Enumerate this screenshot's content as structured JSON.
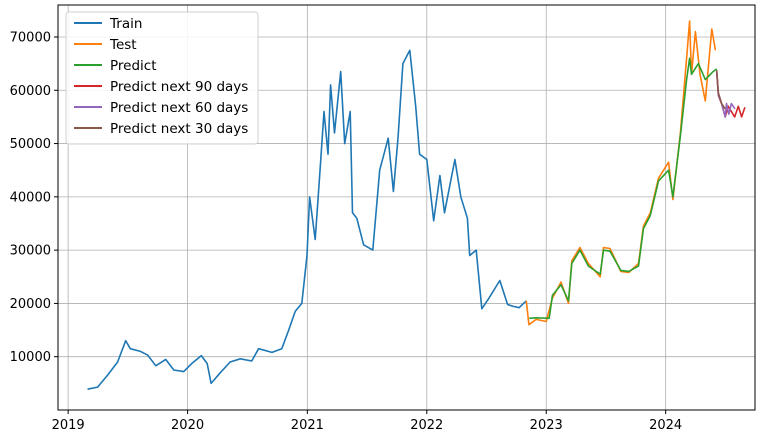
{
  "chart_data": {
    "type": "line",
    "title": "",
    "xlabel": "",
    "ylabel": "",
    "grid": true,
    "legend_position": "top-left",
    "xlim": [
      "2018-12-01",
      "2024-09-30"
    ],
    "ylim": [
      0,
      76000
    ],
    "x_ticks": [
      "2019",
      "2020",
      "2021",
      "2022",
      "2023",
      "2024"
    ],
    "y_ticks": [
      10000,
      20000,
      30000,
      40000,
      50000,
      60000,
      70000
    ],
    "series": [
      {
        "name": "Train",
        "color": "#1f77b4",
        "points": [
          [
            "2019-03-01",
            3900
          ],
          [
            "2019-04-01",
            4300
          ],
          [
            "2019-05-01",
            6500
          ],
          [
            "2019-06-01",
            9000
          ],
          [
            "2019-06-26",
            13000
          ],
          [
            "2019-07-10",
            11500
          ],
          [
            "2019-08-10",
            11000
          ],
          [
            "2019-09-01",
            10300
          ],
          [
            "2019-09-26",
            8300
          ],
          [
            "2019-10-26",
            9500
          ],
          [
            "2019-11-20",
            7500
          ],
          [
            "2019-12-20",
            7200
          ],
          [
            "2020-01-15",
            8800
          ],
          [
            "2020-02-12",
            10200
          ],
          [
            "2020-03-01",
            8700
          ],
          [
            "2020-03-13",
            5000
          ],
          [
            "2020-04-10",
            7000
          ],
          [
            "2020-05-10",
            9000
          ],
          [
            "2020-06-10",
            9600
          ],
          [
            "2020-07-15",
            9200
          ],
          [
            "2020-08-05",
            11500
          ],
          [
            "2020-09-15",
            10800
          ],
          [
            "2020-10-15",
            11500
          ],
          [
            "2020-11-05",
            15000
          ],
          [
            "2020-11-25",
            18500
          ],
          [
            "2020-12-15",
            20000
          ],
          [
            "2020-12-31",
            29000
          ],
          [
            "2021-01-08",
            40000
          ],
          [
            "2021-01-25",
            32000
          ],
          [
            "2021-02-10",
            46000
          ],
          [
            "2021-02-21",
            56000
          ],
          [
            "2021-03-05",
            48000
          ],
          [
            "2021-03-13",
            61000
          ],
          [
            "2021-03-25",
            52000
          ],
          [
            "2021-04-13",
            63500
          ],
          [
            "2021-04-25",
            50000
          ],
          [
            "2021-05-12",
            56000
          ],
          [
            "2021-05-19",
            37000
          ],
          [
            "2021-06-01",
            36000
          ],
          [
            "2021-06-22",
            31000
          ],
          [
            "2021-07-20",
            30000
          ],
          [
            "2021-08-10",
            45000
          ],
          [
            "2021-09-05",
            51000
          ],
          [
            "2021-09-21",
            41000
          ],
          [
            "2021-10-05",
            51000
          ],
          [
            "2021-10-20",
            65000
          ],
          [
            "2021-11-10",
            67500
          ],
          [
            "2021-11-28",
            57000
          ],
          [
            "2021-12-10",
            48000
          ],
          [
            "2022-01-01",
            47000
          ],
          [
            "2022-01-22",
            35500
          ],
          [
            "2022-02-10",
            44000
          ],
          [
            "2022-02-24",
            37000
          ],
          [
            "2022-03-28",
            47000
          ],
          [
            "2022-04-15",
            40000
          ],
          [
            "2022-05-05",
            36000
          ],
          [
            "2022-05-12",
            29000
          ],
          [
            "2022-06-01",
            30000
          ],
          [
            "2022-06-15",
            21000
          ],
          [
            "2022-06-18",
            19000
          ],
          [
            "2022-07-10",
            21000
          ],
          [
            "2022-08-12",
            24300
          ],
          [
            "2022-09-05",
            19800
          ],
          [
            "2022-09-20",
            19500
          ],
          [
            "2022-10-10",
            19200
          ],
          [
            "2022-11-01",
            20500
          ]
        ]
      },
      {
        "name": "Test",
        "color": "#ff7f0e",
        "points": [
          [
            "2022-11-01",
            20500
          ],
          [
            "2022-11-09",
            16000
          ],
          [
            "2022-12-01",
            17000
          ],
          [
            "2023-01-01",
            16600
          ],
          [
            "2023-01-20",
            21000
          ],
          [
            "2023-02-15",
            24000
          ],
          [
            "2023-03-10",
            20000
          ],
          [
            "2023-03-20",
            28000
          ],
          [
            "2023-04-14",
            30500
          ],
          [
            "2023-05-10",
            27500
          ],
          [
            "2023-06-15",
            25000
          ],
          [
            "2023-06-25",
            30500
          ],
          [
            "2023-07-15",
            30300
          ],
          [
            "2023-08-17",
            26000
          ],
          [
            "2023-09-10",
            25800
          ],
          [
            "2023-10-10",
            27500
          ],
          [
            "2023-10-25",
            34500
          ],
          [
            "2023-11-15",
            37000
          ],
          [
            "2023-12-10",
            43500
          ],
          [
            "2024-01-10",
            46500
          ],
          [
            "2024-01-23",
            39500
          ],
          [
            "2024-02-15",
            52000
          ],
          [
            "2024-03-05",
            66000
          ],
          [
            "2024-03-14",
            73000
          ],
          [
            "2024-03-20",
            63000
          ],
          [
            "2024-04-01",
            71000
          ],
          [
            "2024-04-15",
            63000
          ],
          [
            "2024-05-01",
            58000
          ],
          [
            "2024-05-21",
            71500
          ],
          [
            "2024-06-01",
            67500
          ]
        ]
      },
      {
        "name": "Predict",
        "color": "#2ca02c",
        "points": [
          [
            "2022-11-10",
            17200
          ],
          [
            "2022-12-01",
            17300
          ],
          [
            "2023-01-10",
            17200
          ],
          [
            "2023-01-20",
            21500
          ],
          [
            "2023-02-15",
            23500
          ],
          [
            "2023-03-10",
            20500
          ],
          [
            "2023-03-20",
            27500
          ],
          [
            "2023-04-14",
            30000
          ],
          [
            "2023-05-10",
            27000
          ],
          [
            "2023-06-15",
            25500
          ],
          [
            "2023-06-25",
            30000
          ],
          [
            "2023-07-15",
            29800
          ],
          [
            "2023-08-17",
            26200
          ],
          [
            "2023-09-10",
            26000
          ],
          [
            "2023-10-10",
            27000
          ],
          [
            "2023-10-25",
            34000
          ],
          [
            "2023-11-15",
            36500
          ],
          [
            "2023-12-10",
            43000
          ],
          [
            "2024-01-10",
            45000
          ],
          [
            "2024-01-23",
            40000
          ],
          [
            "2024-02-15",
            51500
          ],
          [
            "2024-03-05",
            62000
          ],
          [
            "2024-03-14",
            66000
          ],
          [
            "2024-03-20",
            63000
          ],
          [
            "2024-04-10",
            65000
          ],
          [
            "2024-05-01",
            62000
          ],
          [
            "2024-05-25",
            63500
          ],
          [
            "2024-06-05",
            64000
          ]
        ]
      },
      {
        "name": "Predict next 90 days",
        "color": "#d62728",
        "points": [
          [
            "2024-06-05",
            63500
          ],
          [
            "2024-06-10",
            59000
          ],
          [
            "2024-06-20",
            57500
          ],
          [
            "2024-07-01",
            55000
          ],
          [
            "2024-07-10",
            57000
          ],
          [
            "2024-07-20",
            56000
          ],
          [
            "2024-07-30",
            55000
          ],
          [
            "2024-08-10",
            57000
          ],
          [
            "2024-08-20",
            55000
          ],
          [
            "2024-08-30",
            56800
          ]
        ]
      },
      {
        "name": "Predict next 60 days",
        "color": "#9467bd",
        "points": [
          [
            "2024-06-05",
            63500
          ],
          [
            "2024-06-10",
            59000
          ],
          [
            "2024-06-20",
            57500
          ],
          [
            "2024-07-01",
            55000
          ],
          [
            "2024-07-05",
            57500
          ],
          [
            "2024-07-12",
            55500
          ],
          [
            "2024-07-20",
            57500
          ],
          [
            "2024-07-31",
            56500
          ]
        ]
      },
      {
        "name": "Predict next 30 days",
        "color": "#8c564b",
        "points": [
          [
            "2024-06-05",
            63800
          ],
          [
            "2024-06-10",
            59500
          ],
          [
            "2024-06-20",
            57500
          ],
          [
            "2024-07-01",
            56500
          ]
        ]
      }
    ]
  }
}
